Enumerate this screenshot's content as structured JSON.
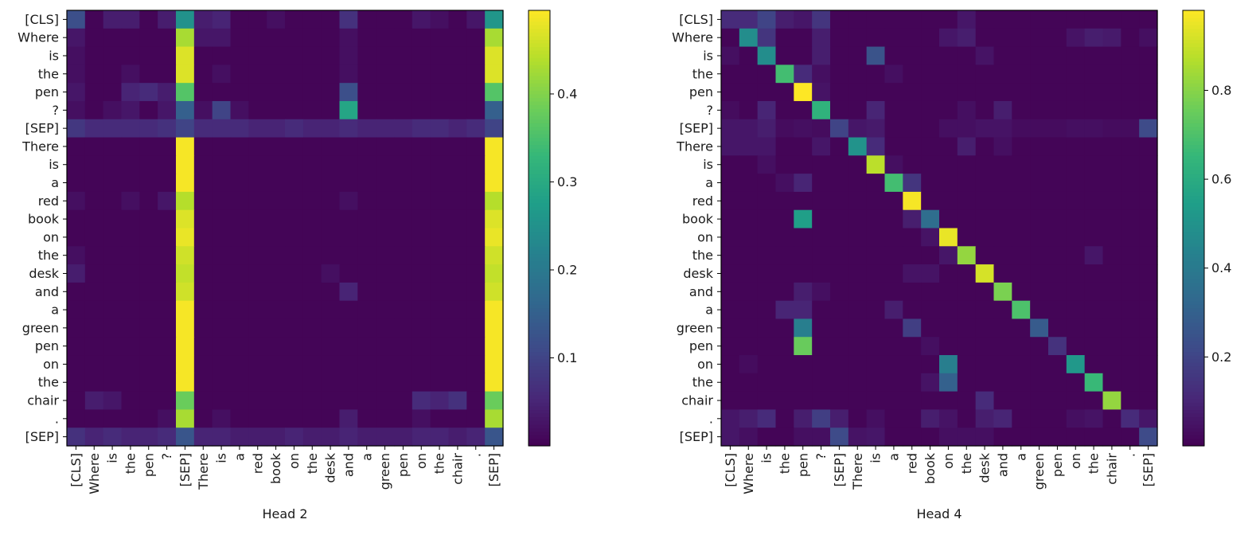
{
  "chart_data": [
    {
      "type": "heatmap",
      "title": "Head 2",
      "xlabel": "Head 2",
      "ylabel": "",
      "colormap": "viridis",
      "vmin": 0.0,
      "vmax": 0.495,
      "colorbar_ticks": [
        0.1,
        0.2,
        0.3,
        0.4
      ],
      "colorbar_tick_labels": [
        "0.1",
        "0.2",
        "0.3",
        "0.4"
      ],
      "x_tokens": [
        "[CLS]",
        "Where",
        "is",
        "the",
        "pen",
        "?",
        "[SEP]",
        "There",
        "is",
        "a",
        "red",
        "book",
        "on",
        "the",
        "desk",
        "and",
        "a",
        "green",
        "pen",
        "on",
        "the",
        "chair",
        ".",
        "[SEP]"
      ],
      "y_tokens": [
        "[CLS]",
        "Where",
        "is",
        "the",
        "pen",
        "?",
        "[SEP]",
        "There",
        "is",
        "a",
        "red",
        "book",
        "on",
        "the",
        "desk",
        "and",
        "a",
        "green",
        "pen",
        "on",
        "the",
        "chair",
        ".",
        "[SEP]"
      ],
      "background": 0.005,
      "cells": [
        [
          0,
          0,
          0.12
        ],
        [
          0,
          2,
          0.04
        ],
        [
          0,
          3,
          0.04
        ],
        [
          0,
          5,
          0.04
        ],
        [
          0,
          6,
          0.25
        ],
        [
          0,
          7,
          0.04
        ],
        [
          0,
          8,
          0.05
        ],
        [
          0,
          11,
          0.02
        ],
        [
          0,
          15,
          0.07
        ],
        [
          0,
          19,
          0.03
        ],
        [
          0,
          20,
          0.02
        ],
        [
          0,
          22,
          0.03
        ],
        [
          0,
          23,
          0.26
        ],
        [
          1,
          0,
          0.03
        ],
        [
          1,
          6,
          0.43
        ],
        [
          1,
          7,
          0.03
        ],
        [
          1,
          8,
          0.03
        ],
        [
          1,
          15,
          0.02
        ],
        [
          1,
          23,
          0.43
        ],
        [
          2,
          0,
          0.02
        ],
        [
          2,
          6,
          0.47
        ],
        [
          2,
          15,
          0.02
        ],
        [
          2,
          23,
          0.47
        ],
        [
          3,
          0,
          0.02
        ],
        [
          3,
          3,
          0.02
        ],
        [
          3,
          6,
          0.47
        ],
        [
          3,
          8,
          0.02
        ],
        [
          3,
          15,
          0.02
        ],
        [
          3,
          23,
          0.47
        ],
        [
          4,
          0,
          0.03
        ],
        [
          4,
          3,
          0.05
        ],
        [
          4,
          4,
          0.06
        ],
        [
          4,
          5,
          0.04
        ],
        [
          4,
          6,
          0.36
        ],
        [
          4,
          15,
          0.12
        ],
        [
          4,
          23,
          0.36
        ],
        [
          5,
          0,
          0.02
        ],
        [
          5,
          2,
          0.02
        ],
        [
          5,
          3,
          0.03
        ],
        [
          5,
          5,
          0.03
        ],
        [
          5,
          6,
          0.15
        ],
        [
          5,
          7,
          0.02
        ],
        [
          5,
          8,
          0.1
        ],
        [
          5,
          9,
          0.02
        ],
        [
          5,
          15,
          0.29
        ],
        [
          5,
          23,
          0.15
        ],
        [
          6,
          0,
          0.08
        ],
        [
          6,
          1,
          0.06
        ],
        [
          6,
          2,
          0.06
        ],
        [
          6,
          3,
          0.06
        ],
        [
          6,
          4,
          0.06
        ],
        [
          6,
          5,
          0.07
        ],
        [
          6,
          6,
          0.1
        ],
        [
          6,
          7,
          0.06
        ],
        [
          6,
          8,
          0.06
        ],
        [
          6,
          9,
          0.06
        ],
        [
          6,
          10,
          0.05
        ],
        [
          6,
          11,
          0.05
        ],
        [
          6,
          12,
          0.06
        ],
        [
          6,
          13,
          0.05
        ],
        [
          6,
          14,
          0.05
        ],
        [
          6,
          15,
          0.06
        ],
        [
          6,
          16,
          0.05
        ],
        [
          6,
          17,
          0.05
        ],
        [
          6,
          18,
          0.05
        ],
        [
          6,
          19,
          0.06
        ],
        [
          6,
          20,
          0.06
        ],
        [
          6,
          21,
          0.05
        ],
        [
          6,
          22,
          0.06
        ],
        [
          6,
          23,
          0.1
        ],
        [
          7,
          6,
          0.49
        ],
        [
          7,
          23,
          0.49
        ],
        [
          8,
          6,
          0.49
        ],
        [
          8,
          23,
          0.49
        ],
        [
          9,
          6,
          0.49
        ],
        [
          9,
          23,
          0.49
        ],
        [
          10,
          0,
          0.02
        ],
        [
          10,
          3,
          0.02
        ],
        [
          10,
          5,
          0.03
        ],
        [
          10,
          6,
          0.44
        ],
        [
          10,
          15,
          0.02
        ],
        [
          10,
          23,
          0.44
        ],
        [
          11,
          6,
          0.47
        ],
        [
          11,
          23,
          0.47
        ],
        [
          12,
          6,
          0.48
        ],
        [
          12,
          23,
          0.48
        ],
        [
          13,
          0,
          0.02
        ],
        [
          13,
          6,
          0.46
        ],
        [
          13,
          23,
          0.46
        ],
        [
          14,
          0,
          0.04
        ],
        [
          14,
          6,
          0.45
        ],
        [
          14,
          14,
          0.02
        ],
        [
          14,
          23,
          0.45
        ],
        [
          15,
          6,
          0.46
        ],
        [
          15,
          15,
          0.05
        ],
        [
          15,
          23,
          0.46
        ],
        [
          16,
          6,
          0.49
        ],
        [
          16,
          23,
          0.49
        ],
        [
          17,
          6,
          0.49
        ],
        [
          17,
          23,
          0.49
        ],
        [
          18,
          6,
          0.49
        ],
        [
          18,
          23,
          0.49
        ],
        [
          19,
          6,
          0.49
        ],
        [
          19,
          23,
          0.49
        ],
        [
          20,
          6,
          0.49
        ],
        [
          20,
          23,
          0.49
        ],
        [
          21,
          1,
          0.04
        ],
        [
          21,
          2,
          0.03
        ],
        [
          21,
          6,
          0.38
        ],
        [
          21,
          19,
          0.06
        ],
        [
          21,
          20,
          0.05
        ],
        [
          21,
          21,
          0.07
        ],
        [
          21,
          23,
          0.38
        ],
        [
          22,
          5,
          0.02
        ],
        [
          22,
          6,
          0.43
        ],
        [
          22,
          8,
          0.02
        ],
        [
          22,
          15,
          0.04
        ],
        [
          22,
          19,
          0.02
        ],
        [
          22,
          23,
          0.43
        ],
        [
          23,
          0,
          0.07
        ],
        [
          23,
          1,
          0.05
        ],
        [
          23,
          2,
          0.06
        ],
        [
          23,
          3,
          0.05
        ],
        [
          23,
          4,
          0.05
        ],
        [
          23,
          5,
          0.06
        ],
        [
          23,
          6,
          0.13
        ],
        [
          23,
          7,
          0.05
        ],
        [
          23,
          8,
          0.05
        ],
        [
          23,
          9,
          0.04
        ],
        [
          23,
          10,
          0.04
        ],
        [
          23,
          11,
          0.04
        ],
        [
          23,
          12,
          0.05
        ],
        [
          23,
          13,
          0.04
        ],
        [
          23,
          14,
          0.04
        ],
        [
          23,
          15,
          0.05
        ],
        [
          23,
          16,
          0.04
        ],
        [
          23,
          17,
          0.04
        ],
        [
          23,
          18,
          0.04
        ],
        [
          23,
          19,
          0.05
        ],
        [
          23,
          20,
          0.05
        ],
        [
          23,
          21,
          0.04
        ],
        [
          23,
          22,
          0.05
        ],
        [
          23,
          23,
          0.13
        ]
      ]
    },
    {
      "type": "heatmap",
      "title": "Head 4",
      "xlabel": "Head 4",
      "ylabel": "",
      "colormap": "viridis",
      "vmin": 0.0,
      "vmax": 0.98,
      "colorbar_ticks": [
        0.2,
        0.4,
        0.6,
        0.8
      ],
      "colorbar_tick_labels": [
        "0.2",
        "0.4",
        "0.6",
        "0.8"
      ],
      "x_tokens": [
        "[CLS]",
        "Where",
        "is",
        "the",
        "pen",
        "?",
        "[SEP]",
        "There",
        "is",
        "a",
        "red",
        "book",
        "on",
        "the",
        "desk",
        "and",
        "a",
        "green",
        "pen",
        "on",
        "the",
        "chair",
        ".",
        "[SEP]"
      ],
      "y_tokens": [
        "[CLS]",
        "Where",
        "is",
        "the",
        "pen",
        "?",
        "[SEP]",
        "There",
        "is",
        "a",
        "red",
        "book",
        "on",
        "the",
        "desk",
        "and",
        "a",
        "green",
        "pen",
        "on",
        "the",
        "chair",
        ".",
        "[SEP]"
      ],
      "background": 0.01,
      "cells": [
        [
          0,
          0,
          0.12
        ],
        [
          0,
          1,
          0.12
        ],
        [
          0,
          2,
          0.2
        ],
        [
          0,
          3,
          0.08
        ],
        [
          0,
          4,
          0.06
        ],
        [
          0,
          5,
          0.15
        ],
        [
          0,
          13,
          0.06
        ],
        [
          1,
          1,
          0.48
        ],
        [
          1,
          2,
          0.15
        ],
        [
          1,
          5,
          0.08
        ],
        [
          1,
          12,
          0.06
        ],
        [
          1,
          13,
          0.08
        ],
        [
          1,
          19,
          0.05
        ],
        [
          1,
          20,
          0.08
        ],
        [
          1,
          21,
          0.07
        ],
        [
          1,
          23,
          0.04
        ],
        [
          2,
          0,
          0.04
        ],
        [
          2,
          2,
          0.48
        ],
        [
          2,
          5,
          0.08
        ],
        [
          2,
          8,
          0.25
        ],
        [
          2,
          14,
          0.05
        ],
        [
          3,
          3,
          0.68
        ],
        [
          3,
          4,
          0.12
        ],
        [
          3,
          5,
          0.04
        ],
        [
          3,
          9,
          0.04
        ],
        [
          4,
          4,
          0.98
        ],
        [
          4,
          5,
          0.05
        ],
        [
          5,
          0,
          0.03
        ],
        [
          5,
          2,
          0.1
        ],
        [
          5,
          5,
          0.63
        ],
        [
          5,
          8,
          0.1
        ],
        [
          5,
          13,
          0.04
        ],
        [
          5,
          15,
          0.08
        ],
        [
          6,
          0,
          0.06
        ],
        [
          6,
          1,
          0.06
        ],
        [
          6,
          2,
          0.08
        ],
        [
          6,
          3,
          0.03
        ],
        [
          6,
          4,
          0.04
        ],
        [
          6,
          5,
          0.03
        ],
        [
          6,
          6,
          0.2
        ],
        [
          6,
          7,
          0.06
        ],
        [
          6,
          8,
          0.07
        ],
        [
          6,
          12,
          0.04
        ],
        [
          6,
          13,
          0.04
        ],
        [
          6,
          14,
          0.05
        ],
        [
          6,
          15,
          0.05
        ],
        [
          6,
          16,
          0.03
        ],
        [
          6,
          17,
          0.03
        ],
        [
          6,
          18,
          0.03
        ],
        [
          6,
          19,
          0.04
        ],
        [
          6,
          20,
          0.04
        ],
        [
          6,
          21,
          0.03
        ],
        [
          6,
          22,
          0.03
        ],
        [
          6,
          23,
          0.22
        ],
        [
          7,
          0,
          0.06
        ],
        [
          7,
          1,
          0.06
        ],
        [
          7,
          2,
          0.06
        ],
        [
          7,
          5,
          0.06
        ],
        [
          7,
          7,
          0.5
        ],
        [
          7,
          8,
          0.12
        ],
        [
          7,
          13,
          0.08
        ],
        [
          7,
          15,
          0.04
        ],
        [
          8,
          2,
          0.04
        ],
        [
          8,
          8,
          0.88
        ],
        [
          8,
          9,
          0.04
        ],
        [
          9,
          3,
          0.04
        ],
        [
          9,
          4,
          0.1
        ],
        [
          9,
          9,
          0.68
        ],
        [
          9,
          10,
          0.15
        ],
        [
          10,
          10,
          0.97
        ],
        [
          11,
          4,
          0.55
        ],
        [
          11,
          10,
          0.08
        ],
        [
          11,
          11,
          0.35
        ],
        [
          12,
          11,
          0.05
        ],
        [
          12,
          12,
          0.95
        ],
        [
          13,
          12,
          0.06
        ],
        [
          13,
          13,
          0.82
        ],
        [
          13,
          20,
          0.06
        ],
        [
          14,
          10,
          0.05
        ],
        [
          14,
          11,
          0.05
        ],
        [
          14,
          14,
          0.92
        ],
        [
          15,
          4,
          0.08
        ],
        [
          15,
          5,
          0.04
        ],
        [
          15,
          15,
          0.78
        ],
        [
          16,
          3,
          0.1
        ],
        [
          16,
          4,
          0.1
        ],
        [
          16,
          9,
          0.08
        ],
        [
          16,
          16,
          0.7
        ],
        [
          17,
          4,
          0.42
        ],
        [
          17,
          10,
          0.18
        ],
        [
          17,
          17,
          0.28
        ],
        [
          18,
          4,
          0.75
        ],
        [
          18,
          11,
          0.04
        ],
        [
          18,
          18,
          0.14
        ],
        [
          19,
          1,
          0.03
        ],
        [
          19,
          12,
          0.42
        ],
        [
          19,
          19,
          0.52
        ],
        [
          20,
          11,
          0.05
        ],
        [
          20,
          12,
          0.3
        ],
        [
          20,
          20,
          0.66
        ],
        [
          21,
          14,
          0.12
        ],
        [
          21,
          21,
          0.82
        ],
        [
          22,
          0,
          0.06
        ],
        [
          22,
          1,
          0.08
        ],
        [
          22,
          2,
          0.12
        ],
        [
          22,
          4,
          0.08
        ],
        [
          22,
          5,
          0.18
        ],
        [
          22,
          6,
          0.08
        ],
        [
          22,
          8,
          0.04
        ],
        [
          22,
          11,
          0.08
        ],
        [
          22,
          12,
          0.05
        ],
        [
          22,
          14,
          0.08
        ],
        [
          22,
          15,
          0.1
        ],
        [
          22,
          19,
          0.04
        ],
        [
          22,
          20,
          0.05
        ],
        [
          22,
          22,
          0.12
        ],
        [
          22,
          23,
          0.06
        ],
        [
          23,
          0,
          0.06
        ],
        [
          23,
          1,
          0.04
        ],
        [
          23,
          4,
          0.04
        ],
        [
          23,
          5,
          0.04
        ],
        [
          23,
          6,
          0.22
        ],
        [
          23,
          7,
          0.05
        ],
        [
          23,
          8,
          0.06
        ],
        [
          23,
          12,
          0.04
        ],
        [
          23,
          13,
          0.04
        ],
        [
          23,
          14,
          0.04
        ],
        [
          23,
          23,
          0.22
        ]
      ]
    }
  ]
}
